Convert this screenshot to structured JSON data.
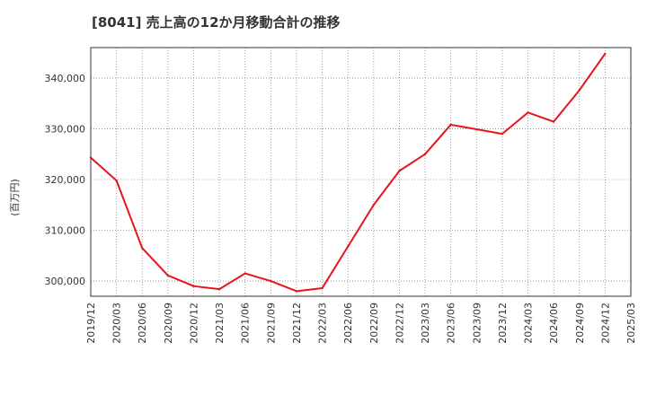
{
  "chart_data": {
    "type": "line",
    "title": "[8041]  売上高の12か月移動合計の推移",
    "ylabel": "(百万円)",
    "xlabel": "",
    "x": [
      "2019/12",
      "2020/03",
      "2020/06",
      "2020/09",
      "2020/12",
      "2021/03",
      "2021/06",
      "2021/09",
      "2021/12",
      "2022/03",
      "2022/06",
      "2022/09",
      "2022/12",
      "2023/03",
      "2023/06",
      "2023/09",
      "2023/12",
      "2024/03",
      "2024/06",
      "2024/09",
      "2024/12",
      "2025/03"
    ],
    "series": [
      {
        "name": "売上高の12か月移動合計",
        "color": "#e8141b",
        "values": [
          324300,
          319800,
          306500,
          301100,
          299000,
          298400,
          301500,
          300000,
          298000,
          298600,
          306800,
          315000,
          321700,
          325000,
          330800,
          329900,
          329000,
          333200,
          331400,
          337600,
          344800,
          null
        ]
      }
    ],
    "ylim": [
      297000,
      346000
    ],
    "yticks": [
      300000,
      310000,
      320000,
      330000,
      340000
    ],
    "ytick_labels": [
      "300,000",
      "310,000",
      "320,000",
      "330,000",
      "340,000"
    ],
    "grid": true
  }
}
